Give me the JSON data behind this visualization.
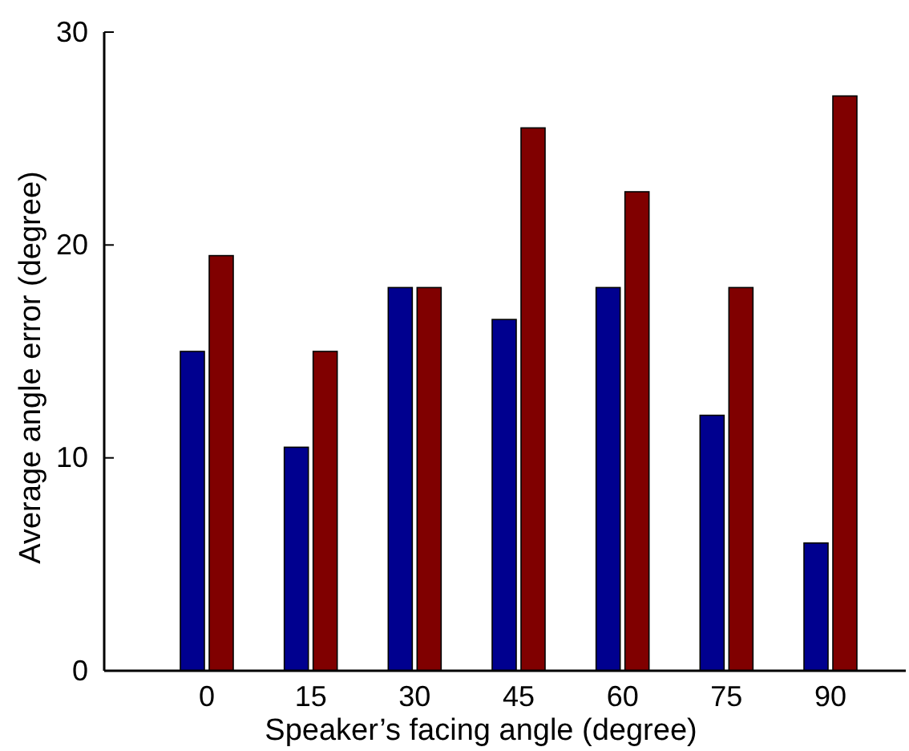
{
  "chart_data": {
    "type": "bar",
    "xlabel": "Speaker’s facing angle (degree)",
    "ylabel": "Average angle error (degree)",
    "categories": [
      "0",
      "15",
      "30",
      "45",
      "60",
      "75",
      "90"
    ],
    "ylim": [
      0,
      30
    ],
    "yticks": [
      0,
      10,
      20,
      30
    ],
    "series": [
      {
        "color": "#00008f",
        "values": [
          15,
          10.5,
          18,
          16.5,
          18,
          12,
          6
        ]
      },
      {
        "color": "#800000",
        "values": [
          19.5,
          15,
          18,
          25.5,
          22.5,
          18,
          27
        ]
      }
    ]
  }
}
